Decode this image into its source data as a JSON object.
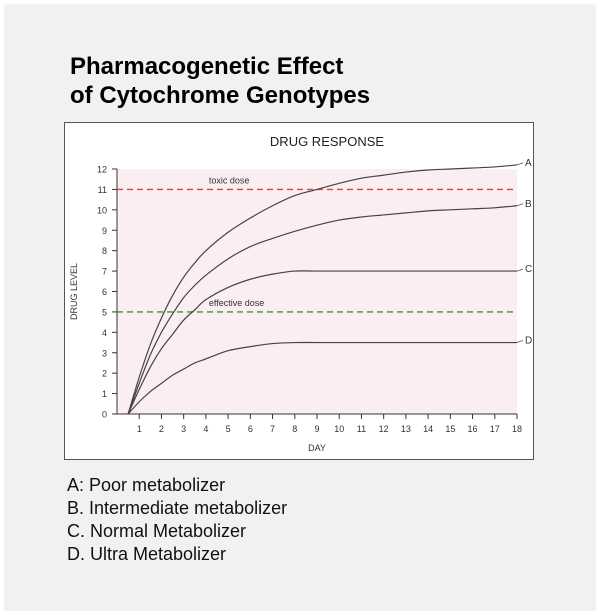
{
  "title_lines": [
    "Pharmacogenetic Effect",
    "of Cytochrome Genotypes"
  ],
  "chart_data": {
    "type": "line",
    "title": "DRUG RESPONSE",
    "xlabel": "DAY",
    "ylabel": "DRUG LEVEL",
    "xlim": [
      0,
      18
    ],
    "ylim": [
      0,
      12
    ],
    "x_ticks": [
      1,
      2,
      3,
      4,
      5,
      6,
      7,
      8,
      9,
      10,
      11,
      12,
      13,
      14,
      15,
      16,
      17,
      18
    ],
    "y_ticks": [
      0,
      1,
      2,
      3,
      4,
      5,
      6,
      7,
      8,
      9,
      10,
      11,
      12
    ],
    "plot_background": "#fbeef0",
    "series": [
      {
        "name": "A",
        "color": "#444444",
        "x": [
          0.5,
          1,
          1.5,
          2,
          2.5,
          3,
          3.5,
          4,
          5,
          6,
          7,
          8,
          9,
          10,
          11,
          12,
          13,
          14,
          15,
          16,
          17,
          18
        ],
        "y": [
          0,
          1.8,
          3.4,
          4.7,
          5.8,
          6.7,
          7.4,
          8.0,
          8.9,
          9.6,
          10.2,
          10.7,
          11.0,
          11.3,
          11.55,
          11.7,
          11.85,
          11.95,
          12.0,
          12.05,
          12.1,
          12.2
        ]
      },
      {
        "name": "B",
        "color": "#444444",
        "x": [
          0.5,
          1,
          1.5,
          2,
          2.5,
          3,
          3.5,
          4,
          5,
          6,
          7,
          8,
          9,
          10,
          11,
          12,
          13,
          14,
          15,
          16,
          17,
          18
        ],
        "y": [
          0,
          1.5,
          2.9,
          4.0,
          4.9,
          5.7,
          6.3,
          6.8,
          7.6,
          8.2,
          8.6,
          8.95,
          9.25,
          9.5,
          9.65,
          9.75,
          9.85,
          9.95,
          10.0,
          10.05,
          10.1,
          10.2
        ]
      },
      {
        "name": "C",
        "color": "#444444",
        "x": [
          0.5,
          1,
          1.5,
          2,
          2.5,
          3,
          3.5,
          4,
          5,
          6,
          7,
          8,
          9,
          10,
          11,
          12,
          13,
          14,
          15,
          16,
          17,
          18
        ],
        "y": [
          0,
          1.2,
          2.3,
          3.2,
          3.9,
          4.6,
          5.1,
          5.6,
          6.2,
          6.6,
          6.85,
          7.0,
          7.0,
          7.0,
          7.0,
          7.0,
          7.0,
          7.0,
          7.0,
          7.0,
          7.0,
          7.0
        ]
      },
      {
        "name": "D",
        "color": "#444444",
        "x": [
          0.5,
          1,
          1.5,
          2,
          2.5,
          3,
          3.5,
          4,
          5,
          6,
          7,
          8,
          9,
          10,
          11,
          12,
          13,
          14,
          15,
          16,
          17,
          18
        ],
        "y": [
          0,
          0.6,
          1.1,
          1.5,
          1.9,
          2.2,
          2.5,
          2.7,
          3.1,
          3.3,
          3.45,
          3.5,
          3.5,
          3.5,
          3.5,
          3.5,
          3.5,
          3.5,
          3.5,
          3.5,
          3.5,
          3.5
        ]
      }
    ],
    "reference_lines": [
      {
        "label": "toxic dose",
        "y": 11,
        "color": "#d64545",
        "label_x": 4
      },
      {
        "label": "effective dose",
        "y": 5,
        "color": "#3a9a3a",
        "label_x": 4
      }
    ]
  },
  "legend": [
    "A: Poor metabolizer",
    "B. Intermediate metabolizer",
    "C. Normal Metabolizer",
    "D. Ultra Metabolizer"
  ]
}
